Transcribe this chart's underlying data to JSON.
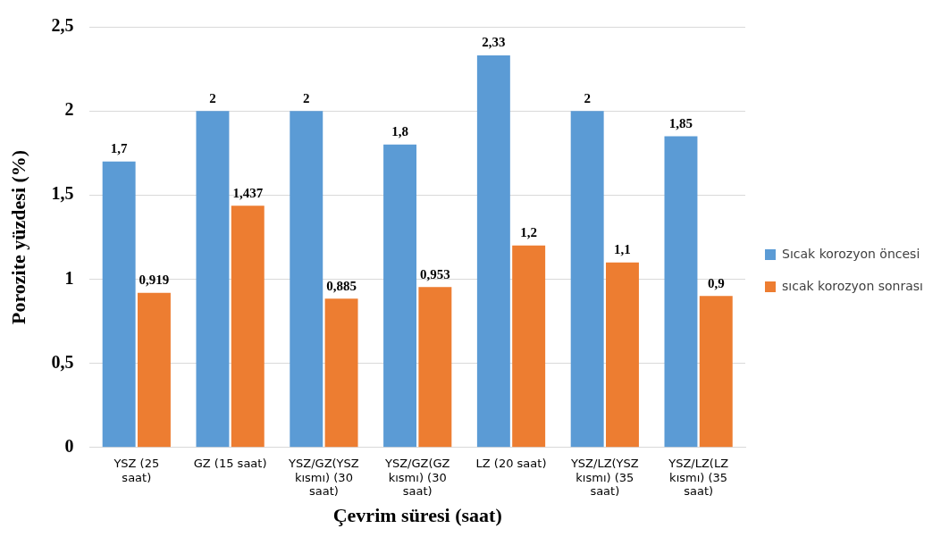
{
  "chart_data": {
    "type": "bar",
    "xlabel": "Çevrim süresi (saat)",
    "ylabel": "Porozite yüzdesi (%)",
    "categories": [
      "YSZ (25 saat)",
      "GZ (15 saat)",
      "YSZ/GZ(YSZ kısmı) (30 saat)",
      "YSZ/GZ(GZ kısmı) (30 saat)",
      "LZ (20 saat)",
      "YSZ/LZ(YSZ kısmı) (35 saat)",
      "YSZ/LZ(LZ kısmı) (35 saat)"
    ],
    "series": [
      {
        "name": "Sıcak korozyon öncesi",
        "color": "#5b9bd5",
        "values": [
          1.7,
          2,
          2,
          1.8,
          2.33,
          2,
          1.85
        ],
        "value_labels": [
          "1,7",
          "2",
          "2",
          "1,8",
          "2,33",
          "2",
          "1,85"
        ]
      },
      {
        "name": "sıcak korozyon sonrası",
        "color": "#ed7d31",
        "values": [
          0.919,
          1.437,
          0.885,
          0.953,
          1.2,
          1.1,
          0.9
        ],
        "value_labels": [
          "0,919",
          "1,437",
          "0,885",
          "0,953",
          "1,2",
          "1,1",
          "0,9"
        ]
      }
    ],
    "ylim": [
      0,
      2.5
    ],
    "yticks": [
      {
        "value": 0,
        "label": "0"
      },
      {
        "value": 0.5,
        "label": "0,5"
      },
      {
        "value": 1,
        "label": "1"
      },
      {
        "value": 1.5,
        "label": "1,5"
      },
      {
        "value": 2,
        "label": "2"
      },
      {
        "value": 2.5,
        "label": "2,5"
      }
    ],
    "grid": "y",
    "legend": "right"
  }
}
